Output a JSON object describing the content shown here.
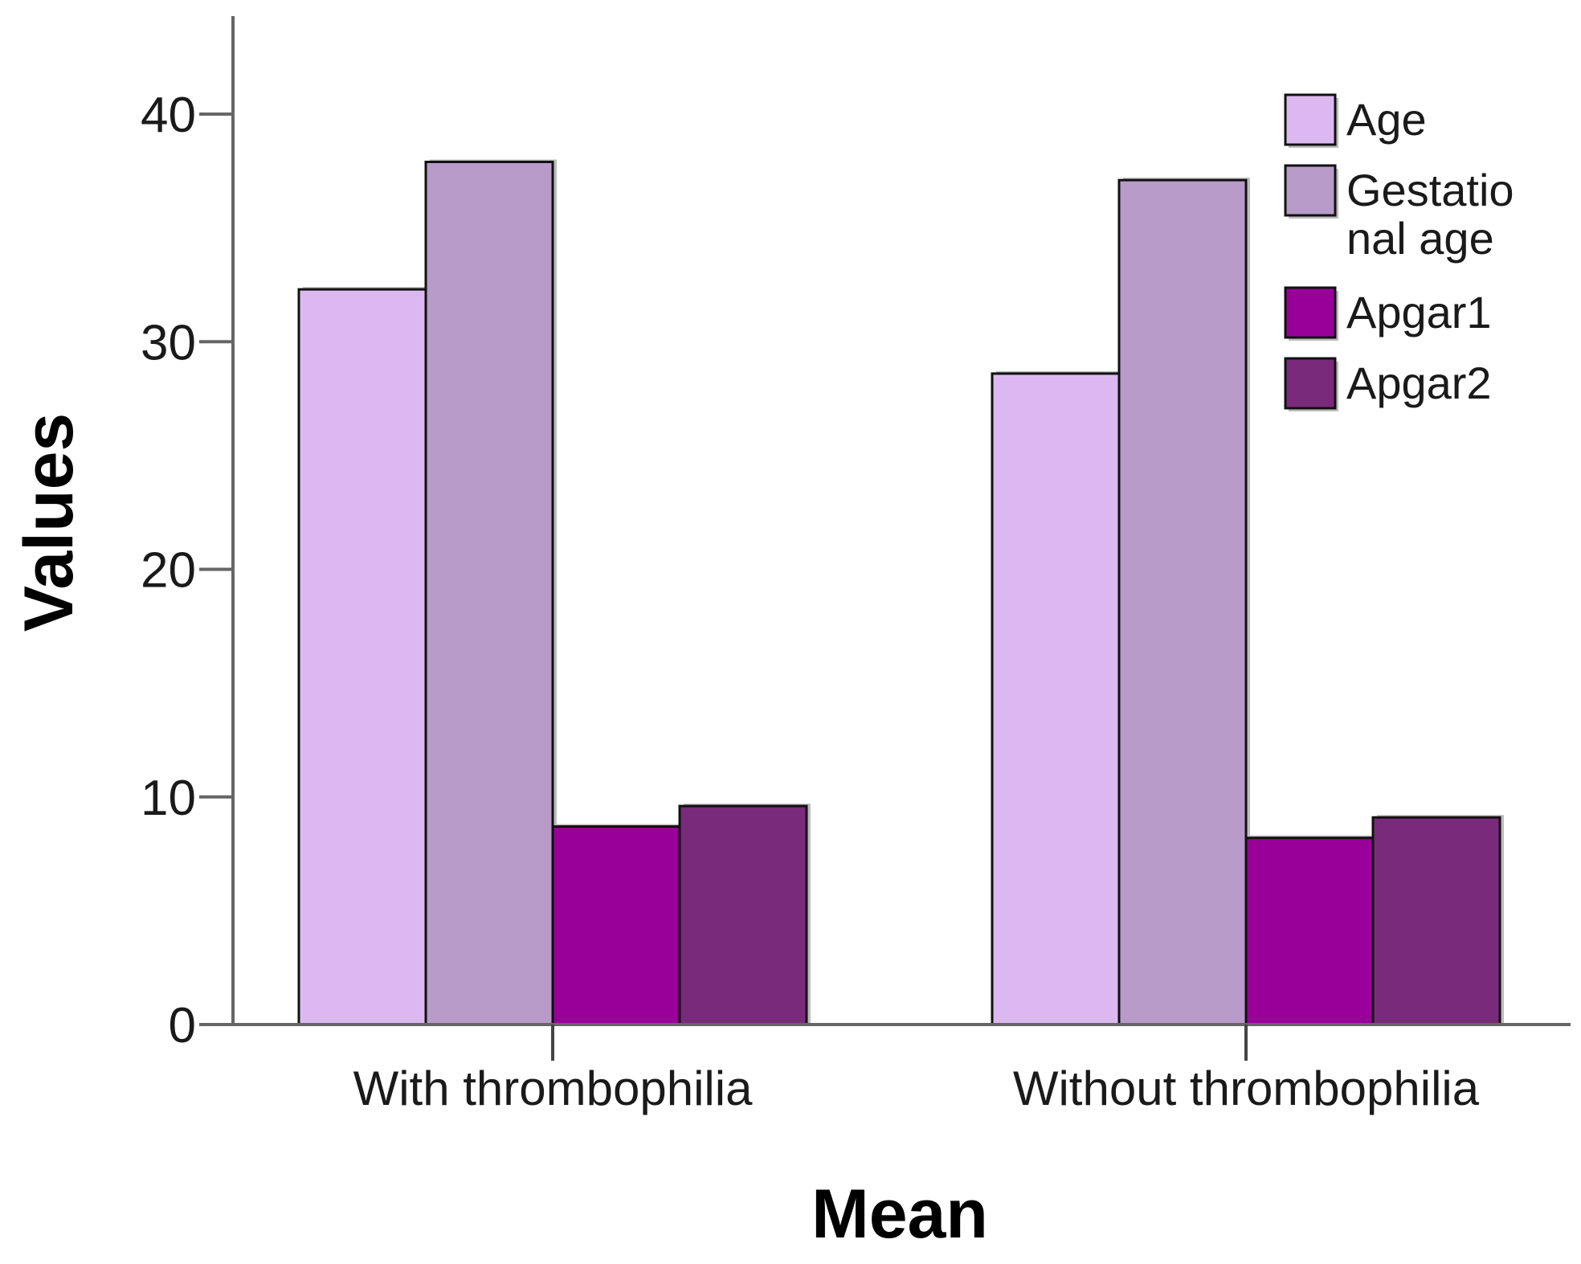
{
  "chart_data": {
    "type": "bar",
    "xlabel": "Mean",
    "ylabel": "Values",
    "categories": [
      "With thrombophilia",
      "Without thrombophilia"
    ],
    "series": [
      {
        "name": "Age",
        "values": [
          32.3,
          28.6
        ],
        "color": "#dcb8f0"
      },
      {
        "name": "Gestational age",
        "legend_lines": [
          "Gestatio",
          "nal age"
        ],
        "values": [
          37.9,
          37.1
        ],
        "color": "#b89bc8"
      },
      {
        "name": "Apgar1",
        "values": [
          8.7,
          8.2
        ],
        "color": "#990099"
      },
      {
        "name": "Apgar2",
        "values": [
          9.6,
          9.1
        ],
        "color": "#7a2a7a"
      }
    ],
    "yticks": [
      0,
      10,
      20,
      30,
      40
    ],
    "ylim": [
      0,
      44
    ],
    "grid": false,
    "legend_position": "top-right"
  }
}
